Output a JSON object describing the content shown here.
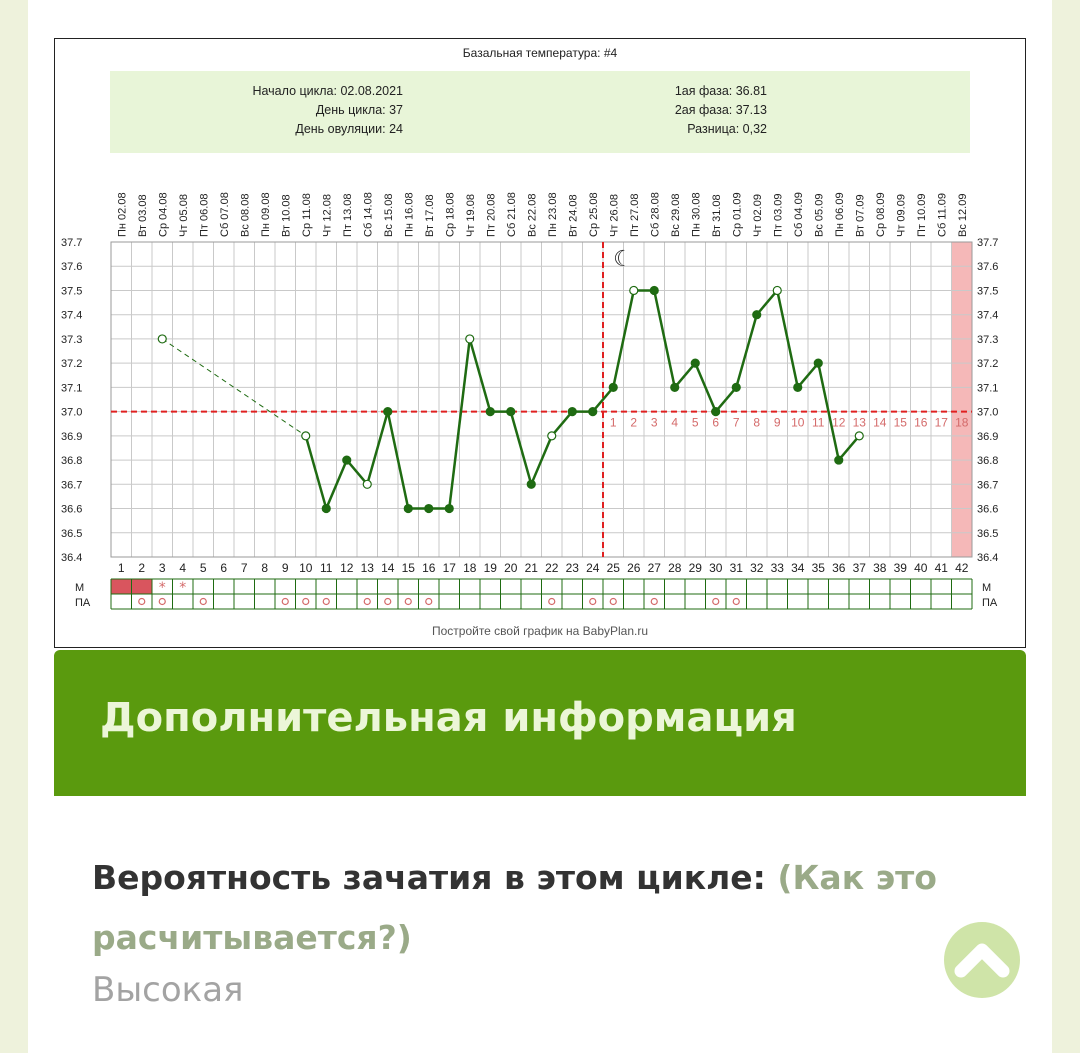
{
  "chart_data": {
    "type": "line",
    "title": "Базальная температура: #4",
    "info_left": [
      "Начало цикла: 02.08.2021",
      "День цикла: 37",
      "День овуляции: 24"
    ],
    "info_right": [
      "1ая фаза: 36.81",
      "2ая фаза: 37.13",
      "Разница: 0,32"
    ],
    "weekdays": [
      "Пн",
      "Вт",
      "Ср",
      "Чт",
      "Пт",
      "Сб",
      "Вс",
      "Пн",
      "Вт",
      "Ср",
      "Чт",
      "Пт",
      "Сб",
      "Вс",
      "Пн",
      "Вт",
      "Ср",
      "Чт",
      "Пт",
      "Сб",
      "Вс",
      "Пн",
      "Вт",
      "Ср",
      "Чт",
      "Пт",
      "Сб",
      "Вс",
      "Пн",
      "Вт",
      "Ср",
      "Чт",
      "Пт",
      "Сб",
      "Вс",
      "Пн",
      "Вт",
      "Ср",
      "Чт",
      "Пт",
      "Сб",
      "Вс"
    ],
    "dates": [
      "02.08",
      "03.08",
      "04.08",
      "05.08",
      "06.08",
      "07.08",
      "08.08",
      "09.08",
      "10.08",
      "11.08",
      "12.08",
      "13.08",
      "14.08",
      "15.08",
      "16.08",
      "17.08",
      "18.08",
      "19.08",
      "20.08",
      "21.08",
      "22.08",
      "23.08",
      "24.08",
      "25.08",
      "26.08",
      "27.08",
      "28.08",
      "29.08",
      "30.08",
      "31.08",
      "01.09",
      "02.09",
      "03.09",
      "04.09",
      "05.09",
      "06.09",
      "07.09",
      "08.09",
      "09.09",
      "10.09",
      "11.09",
      "12.09"
    ],
    "days": [
      "1",
      "2",
      "3",
      "4",
      "5",
      "6",
      "7",
      "8",
      "9",
      "10",
      "11",
      "12",
      "13",
      "14",
      "15",
      "16",
      "17",
      "18",
      "19",
      "20",
      "21",
      "22",
      "23",
      "24",
      "25",
      "26",
      "27",
      "28",
      "29",
      "30",
      "31",
      "32",
      "33",
      "34",
      "35",
      "36",
      "37",
      "38",
      "39",
      "40",
      "41",
      "42"
    ],
    "y_ticks": [
      "37.7",
      "37.6",
      "37.5",
      "37.4",
      "37.3",
      "37.2",
      "37.1",
      "37.0",
      "36.9",
      "36.8",
      "36.7",
      "36.6",
      "36.5",
      "36.4"
    ],
    "ylim": [
      36.4,
      37.7
    ],
    "temperatures": [
      null,
      null,
      37.3,
      null,
      null,
      null,
      null,
      null,
      null,
      36.9,
      36.6,
      36.8,
      36.7,
      37.0,
      36.6,
      36.6,
      36.6,
      37.3,
      37.0,
      37.0,
      36.7,
      36.9,
      37.0,
      37.0,
      37.1,
      37.5,
      37.5,
      37.1,
      37.2,
      37.0,
      37.1,
      37.4,
      37.5,
      37.1,
      37.2,
      36.8,
      36.9
    ],
    "open_points": [
      3,
      10,
      13,
      18,
      22,
      26,
      33,
      37
    ],
    "coverline": 37.0,
    "ovulation_day": 24,
    "phase_numbers": [
      "1",
      "2",
      "3",
      "4",
      "5",
      "6",
      "7",
      "8",
      "9",
      "10",
      "11",
      "12",
      "13",
      "14",
      "15",
      "16",
      "17",
      "18"
    ],
    "highlight_day": 42,
    "row_labels": {
      "m": "М",
      "pa": "ПА"
    },
    "m_days": [
      1,
      2
    ],
    "star_days": [
      3,
      4
    ],
    "pa_days": [
      2,
      3,
      5,
      9,
      10,
      11,
      13,
      14,
      15,
      16,
      22,
      24,
      25,
      27,
      30,
      31
    ],
    "footer": "Постройте свой график на BabyPlan.ru",
    "colors": {
      "line": "#1f6b12",
      "coverline": "#e02020",
      "grid": "#c9c9c9",
      "info_bg": "#e8f5d8",
      "highlight": "#f5b8b8",
      "marks": "#d46a6a"
    }
  },
  "section": {
    "title": "Дополнительная информация"
  },
  "probability": {
    "label": "Вероятность зачатия в этом цикле:",
    "link": "(Как это расчитывается?)",
    "value": "Высокая"
  },
  "icons": {
    "scroll_top": "chevron-up-icon"
  }
}
